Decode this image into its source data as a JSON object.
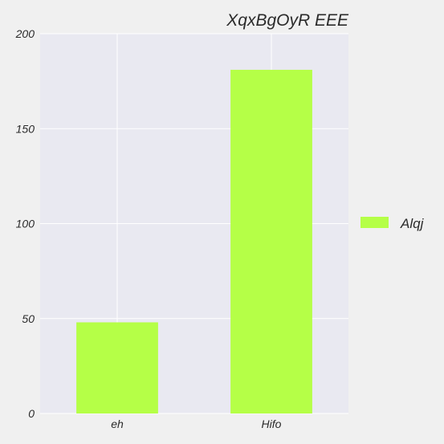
{
  "chart_data": {
    "type": "bar",
    "title": "XqxBgOyR EEE",
    "xlabel": "",
    "ylabel": "",
    "categories": [
      "eh",
      "Hifo"
    ],
    "series": [
      {
        "name": "Alqj",
        "values": [
          48,
          181
        ],
        "color": "#b5ff47"
      }
    ],
    "ylim": [
      0,
      200
    ],
    "yticks": [
      0,
      50,
      100,
      150,
      200
    ],
    "grid": true,
    "legend_position": "right"
  },
  "colors": {
    "plot_background": "#e9e9f1",
    "page_background": "#f0f0f0",
    "grid": "#ffffff"
  }
}
